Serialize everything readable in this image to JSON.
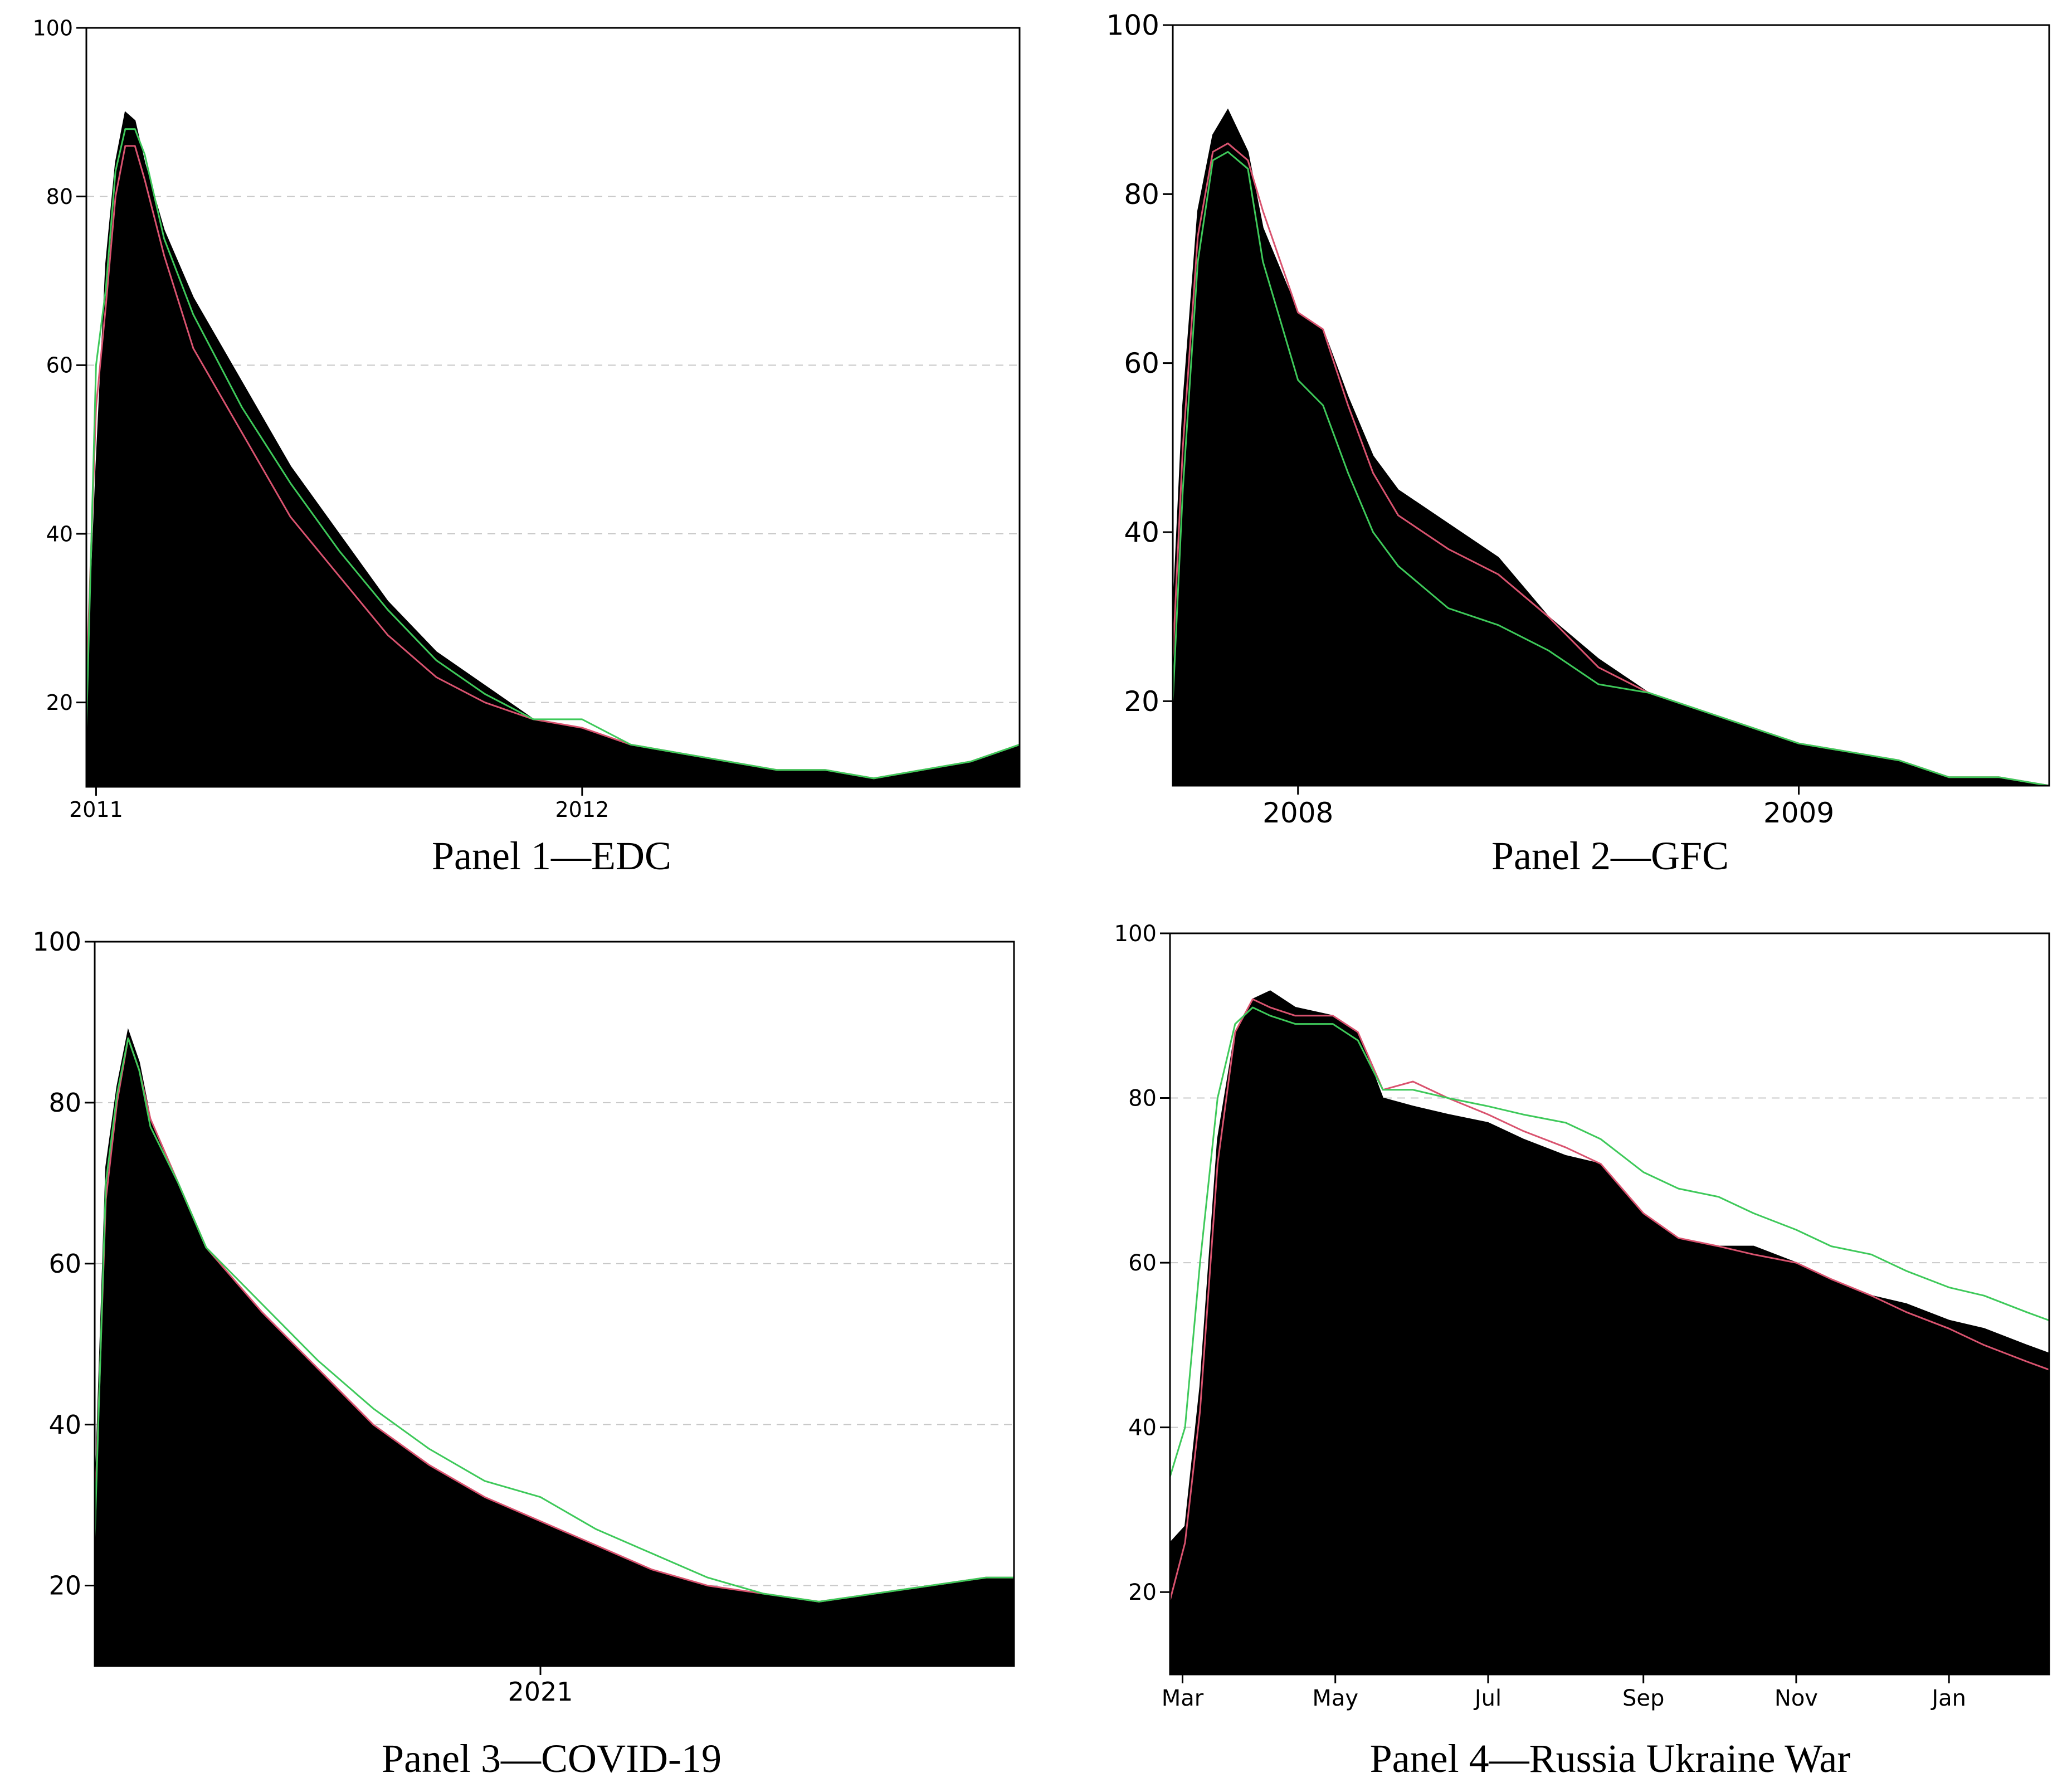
{
  "colors": {
    "area": "#000000",
    "red_line": "#d9536f",
    "green_line": "#3ec95a",
    "grid": "#c8c8c8",
    "axis": "#000000"
  },
  "chart_data": [
    {
      "type": "area",
      "caption": "Panel 1—EDC",
      "ylim": [
        10,
        100
      ],
      "yticks": [
        20,
        40,
        60,
        80,
        100
      ],
      "yticklabels": [
        "20",
        "40",
        "60",
        "80",
        "100"
      ],
      "grid": "horizontal dashed",
      "xlim": [
        2010.98,
        2012.9
      ],
      "xticks": [
        {
          "x": 2011.0,
          "label": "2011"
        },
        {
          "x": 2012.0,
          "label": "2012"
        }
      ],
      "series": [
        {
          "role": "area",
          "color": "black",
          "x": [
            2010.98,
            2011.0,
            2011.02,
            2011.04,
            2011.06,
            2011.08,
            2011.1,
            2011.14,
            2011.2,
            2011.3,
            2011.4,
            2011.5,
            2011.6,
            2011.7,
            2011.8,
            2011.9,
            2012.0,
            2012.1,
            2012.2,
            2012.3,
            2012.4,
            2012.5,
            2012.6,
            2012.7,
            2012.8,
            2012.9
          ],
          "y": [
            20,
            48,
            72,
            84,
            90,
            89,
            84,
            76,
            68,
            58,
            48,
            40,
            32,
            26,
            22,
            18,
            17,
            15,
            14,
            13,
            12,
            12,
            11,
            12,
            13,
            15
          ]
        },
        {
          "role": "line",
          "color": "red",
          "x": [
            2010.98,
            2011.0,
            2011.02,
            2011.04,
            2011.06,
            2011.08,
            2011.1,
            2011.14,
            2011.2,
            2011.3,
            2011.4,
            2011.5,
            2011.6,
            2011.7,
            2011.8,
            2011.9,
            2012.0,
            2012.1,
            2012.2,
            2012.3,
            2012.4,
            2012.5,
            2012.6,
            2012.7,
            2012.8,
            2012.9
          ],
          "y": [
            22,
            55,
            67,
            80,
            86,
            86,
            82,
            73,
            62,
            52,
            42,
            35,
            28,
            23,
            20,
            18,
            17,
            15,
            14,
            13,
            12,
            12,
            11,
            12,
            13,
            15
          ]
        },
        {
          "role": "line",
          "color": "green",
          "x": [
            2010.98,
            2011.0,
            2011.02,
            2011.04,
            2011.06,
            2011.08,
            2011.1,
            2011.14,
            2011.2,
            2011.3,
            2011.4,
            2011.5,
            2011.6,
            2011.7,
            2011.8,
            2011.9,
            2012.0,
            2012.1,
            2012.2,
            2012.3,
            2012.4,
            2012.5,
            2012.6,
            2012.7,
            2012.8,
            2012.9
          ],
          "y": [
            17,
            60,
            69,
            83,
            88,
            88,
            85,
            75,
            66,
            55,
            46,
            38,
            31,
            25,
            21,
            18,
            18,
            15,
            14,
            13,
            12,
            12,
            11,
            12,
            13,
            15
          ]
        }
      ]
    },
    {
      "type": "area",
      "caption": "Panel 2—GFC",
      "ylim": [
        10,
        100
      ],
      "yticks": [
        20,
        40,
        60,
        80,
        100
      ],
      "yticklabels": [
        "20",
        "40",
        "60",
        "80",
        "100"
      ],
      "grid": "none",
      "xlim": [
        2007.75,
        2009.5
      ],
      "xticks": [
        {
          "x": 2008.0,
          "label": "2008"
        },
        {
          "x": 2009.0,
          "label": "2009"
        }
      ],
      "series": [
        {
          "role": "area",
          "color": "black",
          "x": [
            2007.75,
            2007.77,
            2007.8,
            2007.83,
            2007.86,
            2007.9,
            2007.93,
            2008.0,
            2008.05,
            2008.1,
            2008.15,
            2008.2,
            2008.3,
            2008.4,
            2008.5,
            2008.6,
            2008.7,
            2008.8,
            2008.9,
            2009.0,
            2009.1,
            2009.2,
            2009.3,
            2009.4,
            2009.5
          ],
          "y": [
            30,
            55,
            78,
            87,
            90,
            85,
            76,
            66,
            64,
            56,
            49,
            45,
            41,
            37,
            30,
            25,
            21,
            19,
            17,
            15,
            14,
            13,
            11,
            11,
            10
          ]
        },
        {
          "role": "line",
          "color": "red",
          "x": [
            2007.75,
            2007.77,
            2007.8,
            2007.83,
            2007.86,
            2007.9,
            2007.93,
            2008.0,
            2008.05,
            2008.1,
            2008.15,
            2008.2,
            2008.3,
            2008.4,
            2008.5,
            2008.6,
            2008.7,
            2008.8,
            2008.9,
            2009.0,
            2009.1,
            2009.2,
            2009.3,
            2009.4,
            2009.5
          ],
          "y": [
            25,
            50,
            75,
            85,
            86,
            84,
            78,
            66,
            64,
            55,
            47,
            42,
            38,
            35,
            30,
            24,
            21,
            19,
            17,
            15,
            14,
            13,
            11,
            11,
            10
          ]
        },
        {
          "role": "line",
          "color": "green",
          "x": [
            2007.75,
            2007.77,
            2007.8,
            2007.83,
            2007.86,
            2007.9,
            2007.93,
            2008.0,
            2008.05,
            2008.1,
            2008.15,
            2008.2,
            2008.3,
            2008.4,
            2008.5,
            2008.6,
            2008.7,
            2008.8,
            2008.9,
            2009.0,
            2009.1,
            2009.2,
            2009.3,
            2009.4,
            2009.5
          ],
          "y": [
            20,
            45,
            72,
            84,
            85,
            83,
            72,
            58,
            55,
            47,
            40,
            36,
            31,
            29,
            26,
            22,
            21,
            19,
            17,
            15,
            14,
            13,
            11,
            11,
            10
          ]
        }
      ]
    },
    {
      "type": "area",
      "caption": "Panel 3—COVID-19",
      "ylim": [
        10,
        100
      ],
      "yticks": [
        20,
        40,
        60,
        80,
        100
      ],
      "yticklabels": [
        "20",
        "40",
        "60",
        "80",
        "100"
      ],
      "grid": "horizontal dashed",
      "xlim": [
        2020.2,
        2021.85
      ],
      "xticks": [
        {
          "x": 2021.0,
          "label": "2021"
        }
      ],
      "series": [
        {
          "role": "area",
          "color": "black",
          "x": [
            2020.2,
            2020.22,
            2020.24,
            2020.26,
            2020.28,
            2020.3,
            2020.35,
            2020.4,
            2020.5,
            2020.6,
            2020.7,
            2020.8,
            2020.9,
            2021.0,
            2021.1,
            2021.2,
            2021.3,
            2021.4,
            2021.5,
            2021.6,
            2021.7,
            2021.8,
            2021.85
          ],
          "y": [
            30,
            72,
            82,
            89,
            85,
            78,
            70,
            62,
            54,
            47,
            40,
            35,
            31,
            28,
            25,
            22,
            20,
            19,
            18,
            19,
            20,
            21,
            21
          ]
        },
        {
          "role": "line",
          "color": "red",
          "x": [
            2020.2,
            2020.22,
            2020.24,
            2020.26,
            2020.28,
            2020.3,
            2020.35,
            2020.4,
            2020.5,
            2020.6,
            2020.7,
            2020.8,
            2020.9,
            2021.0,
            2021.1,
            2021.2,
            2021.3,
            2021.4,
            2021.5,
            2021.6,
            2021.7,
            2021.8,
            2021.85
          ],
          "y": [
            28,
            68,
            80,
            88,
            84,
            78,
            70,
            62,
            54,
            47,
            40,
            35,
            31,
            28,
            25,
            22,
            20,
            19,
            18,
            19,
            20,
            21,
            21
          ]
        },
        {
          "role": "line",
          "color": "green",
          "x": [
            2020.2,
            2020.22,
            2020.24,
            2020.26,
            2020.28,
            2020.3,
            2020.35,
            2020.4,
            2020.5,
            2020.6,
            2020.7,
            2020.8,
            2020.9,
            2021.0,
            2021.1,
            2021.2,
            2021.3,
            2021.4,
            2021.5,
            2021.6,
            2021.7,
            2021.8,
            2021.85
          ],
          "y": [
            26,
            70,
            81,
            88,
            84,
            77,
            70,
            62,
            55,
            48,
            42,
            37,
            33,
            31,
            27,
            24,
            21,
            19,
            18,
            19,
            20,
            21,
            21
          ]
        }
      ]
    },
    {
      "type": "area",
      "caption": "Panel 4—Russia Ukraine War",
      "ylim": [
        10,
        100
      ],
      "yticks": [
        20,
        40,
        60,
        80,
        100
      ],
      "yticklabels": [
        "20",
        "40",
        "60",
        "80",
        "100"
      ],
      "grid": "horizontal dashed",
      "xlim": [
        "2022-02-24",
        "2023-02-10"
      ],
      "xticks": [
        {
          "x": "2022-03-01",
          "label": "Mar"
        },
        {
          "x": "2022-05-01",
          "label": "May"
        },
        {
          "x": "2022-07-01",
          "label": "Jul"
        },
        {
          "x": "2022-09-01",
          "label": "Sep"
        },
        {
          "x": "2022-11-01",
          "label": "Nov"
        },
        {
          "x": "2023-01-01",
          "label": "Jan"
        }
      ],
      "series": [
        {
          "role": "area",
          "color": "black",
          "x": [
            "2022-02-24",
            "2022-03-02",
            "2022-03-08",
            "2022-03-15",
            "2022-03-22",
            "2022-03-29",
            "2022-04-05",
            "2022-04-15",
            "2022-04-30",
            "2022-05-10",
            "2022-05-20",
            "2022-06-01",
            "2022-06-15",
            "2022-07-01",
            "2022-07-15",
            "2022-08-01",
            "2022-08-15",
            "2022-09-01",
            "2022-09-15",
            "2022-10-01",
            "2022-10-15",
            "2022-11-01",
            "2022-11-15",
            "2022-12-01",
            "2022-12-15",
            "2023-01-01",
            "2023-01-15",
            "2023-02-01",
            "2023-02-10"
          ],
          "y": [
            26,
            28,
            45,
            75,
            88,
            92,
            93,
            91,
            90,
            88,
            80,
            79,
            78,
            77,
            75,
            73,
            72,
            66,
            63,
            62,
            62,
            60,
            58,
            56,
            55,
            53,
            52,
            50,
            49
          ]
        },
        {
          "role": "line",
          "color": "red",
          "x": [
            "2022-02-24",
            "2022-03-02",
            "2022-03-08",
            "2022-03-15",
            "2022-03-22",
            "2022-03-29",
            "2022-04-05",
            "2022-04-15",
            "2022-04-30",
            "2022-05-10",
            "2022-05-20",
            "2022-06-01",
            "2022-06-15",
            "2022-07-01",
            "2022-07-15",
            "2022-08-01",
            "2022-08-15",
            "2022-09-01",
            "2022-09-15",
            "2022-10-01",
            "2022-10-15",
            "2022-11-01",
            "2022-11-15",
            "2022-12-01",
            "2022-12-15",
            "2023-01-01",
            "2023-01-15",
            "2023-02-01",
            "2023-02-10"
          ],
          "y": [
            19,
            26,
            42,
            72,
            88,
            92,
            91,
            90,
            90,
            88,
            81,
            82,
            80,
            78,
            76,
            74,
            72,
            66,
            63,
            62,
            61,
            60,
            58,
            56,
            54,
            52,
            50,
            48,
            47
          ]
        },
        {
          "role": "line",
          "color": "green",
          "x": [
            "2022-02-24",
            "2022-03-02",
            "2022-03-08",
            "2022-03-15",
            "2022-03-22",
            "2022-03-29",
            "2022-04-05",
            "2022-04-15",
            "2022-04-30",
            "2022-05-10",
            "2022-05-20",
            "2022-06-01",
            "2022-06-15",
            "2022-07-01",
            "2022-07-15",
            "2022-08-01",
            "2022-08-15",
            "2022-09-01",
            "2022-09-15",
            "2022-10-01",
            "2022-10-15",
            "2022-11-01",
            "2022-11-15",
            "2022-12-01",
            "2022-12-15",
            "2023-01-01",
            "2023-01-15",
            "2023-02-01",
            "2023-02-10"
          ],
          "y": [
            34,
            40,
            60,
            80,
            89,
            91,
            90,
            89,
            89,
            87,
            81,
            81,
            80,
            79,
            78,
            77,
            75,
            71,
            69,
            68,
            66,
            64,
            62,
            61,
            59,
            57,
            56,
            54,
            53
          ]
        }
      ]
    }
  ]
}
